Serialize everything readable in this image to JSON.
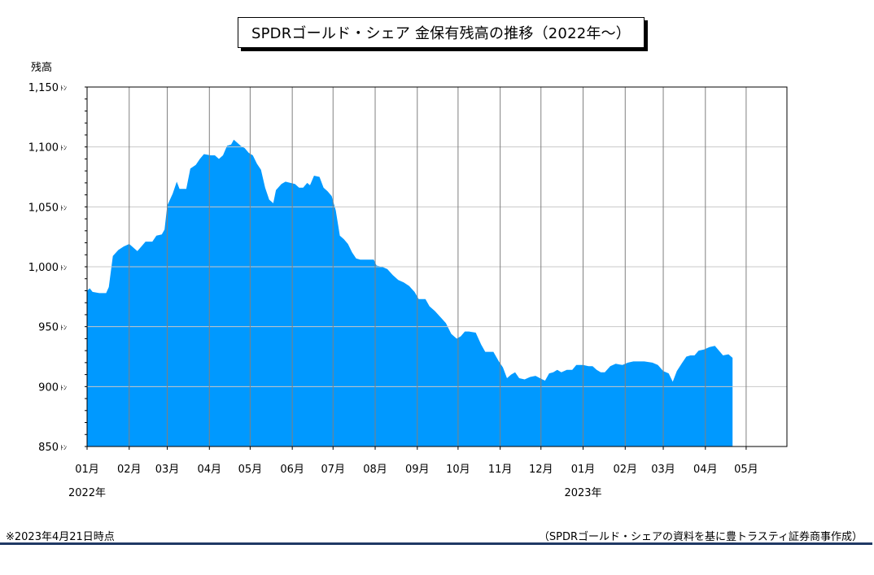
{
  "chart_data": {
    "type": "area",
    "title": "SPDRゴールド・シェア 金保有残高の推移（2022年～）",
    "ylabel": "残高",
    "y_unit": "ﾄﾝ",
    "ylim": [
      850,
      1150
    ],
    "yticks": [
      {
        "value": 850,
        "label": "850"
      },
      {
        "value": 900,
        "label": "900"
      },
      {
        "value": 950,
        "label": "950"
      },
      {
        "value": 1000,
        "label": "1,000"
      },
      {
        "value": 1050,
        "label": "1,050"
      },
      {
        "value": 1100,
        "label": "1,100"
      },
      {
        "value": 1150,
        "label": "1,150"
      }
    ],
    "xlim": [
      "2022-01-01",
      "2023-05-31"
    ],
    "xticks": [
      {
        "date": "2022-01-01",
        "label": "01月"
      },
      {
        "date": "2022-02-01",
        "label": "02月"
      },
      {
        "date": "2022-03-01",
        "label": "03月"
      },
      {
        "date": "2022-04-01",
        "label": "04月"
      },
      {
        "date": "2022-05-01",
        "label": "05月"
      },
      {
        "date": "2022-06-01",
        "label": "06月"
      },
      {
        "date": "2022-07-01",
        "label": "07月"
      },
      {
        "date": "2022-08-01",
        "label": "08月"
      },
      {
        "date": "2022-09-01",
        "label": "09月"
      },
      {
        "date": "2022-10-01",
        "label": "10月"
      },
      {
        "date": "2022-11-01",
        "label": "11月"
      },
      {
        "date": "2022-12-01",
        "label": "12月"
      },
      {
        "date": "2023-01-01",
        "label": "01月"
      },
      {
        "date": "2023-02-01",
        "label": "02月"
      },
      {
        "date": "2023-03-01",
        "label": "03月"
      },
      {
        "date": "2023-04-01",
        "label": "04月"
      },
      {
        "date": "2023-05-01",
        "label": "05月"
      }
    ],
    "year_labels": [
      {
        "date": "2022-01-01",
        "label": "2022年"
      },
      {
        "date": "2023-01-01",
        "label": "2023年"
      }
    ],
    "grid": true,
    "colors": {
      "fill": "#0099ff",
      "grid": "#808080"
    },
    "points": [
      [
        "2022-01-01",
        980
      ],
      [
        "2022-01-03",
        982
      ],
      [
        "2022-01-05",
        979
      ],
      [
        "2022-01-10",
        978
      ],
      [
        "2022-01-15",
        978
      ],
      [
        "2022-01-17",
        983
      ],
      [
        "2022-01-20",
        1009
      ],
      [
        "2022-01-24",
        1014
      ],
      [
        "2022-01-28",
        1017
      ],
      [
        "2022-02-01",
        1019
      ],
      [
        "2022-02-04",
        1016
      ],
      [
        "2022-02-07",
        1013
      ],
      [
        "2022-02-10",
        1017
      ],
      [
        "2022-02-13",
        1021
      ],
      [
        "2022-02-18",
        1021
      ],
      [
        "2022-02-21",
        1026
      ],
      [
        "2022-02-25",
        1027
      ],
      [
        "2022-02-27",
        1031
      ],
      [
        "2022-03-01",
        1051
      ],
      [
        "2022-03-05",
        1061
      ],
      [
        "2022-03-08",
        1071
      ],
      [
        "2022-03-10",
        1065
      ],
      [
        "2022-03-15",
        1065
      ],
      [
        "2022-03-18",
        1082
      ],
      [
        "2022-03-22",
        1085
      ],
      [
        "2022-03-25",
        1090
      ],
      [
        "2022-03-28",
        1094
      ],
      [
        "2022-04-02",
        1093
      ],
      [
        "2022-04-05",
        1093
      ],
      [
        "2022-04-08",
        1090
      ],
      [
        "2022-04-11",
        1093
      ],
      [
        "2022-04-14",
        1101
      ],
      [
        "2022-04-17",
        1102
      ],
      [
        "2022-04-19",
        1106
      ],
      [
        "2022-04-21",
        1104
      ],
      [
        "2022-04-24",
        1101
      ],
      [
        "2022-04-27",
        1099
      ],
      [
        "2022-04-30",
        1095
      ],
      [
        "2022-05-03",
        1093
      ],
      [
        "2022-05-06",
        1086
      ],
      [
        "2022-05-09",
        1081
      ],
      [
        "2022-05-12",
        1066
      ],
      [
        "2022-05-15",
        1056
      ],
      [
        "2022-05-18",
        1053
      ],
      [
        "2022-05-20",
        1064
      ],
      [
        "2022-05-24",
        1069
      ],
      [
        "2022-05-27",
        1071
      ],
      [
        "2022-06-03",
        1069
      ],
      [
        "2022-06-06",
        1066
      ],
      [
        "2022-06-09",
        1066
      ],
      [
        "2022-06-12",
        1070
      ],
      [
        "2022-06-14",
        1068
      ],
      [
        "2022-06-17",
        1076
      ],
      [
        "2022-06-21",
        1075
      ],
      [
        "2022-06-24",
        1066
      ],
      [
        "2022-06-27",
        1063
      ],
      [
        "2022-06-30",
        1059
      ],
      [
        "2022-07-03",
        1047
      ],
      [
        "2022-07-06",
        1026
      ],
      [
        "2022-07-09",
        1023
      ],
      [
        "2022-07-12",
        1019
      ],
      [
        "2022-07-15",
        1012
      ],
      [
        "2022-07-18",
        1007
      ],
      [
        "2022-07-21",
        1006
      ],
      [
        "2022-07-31",
        1006
      ],
      [
        "2022-08-02",
        1001
      ],
      [
        "2022-08-06",
        1000
      ],
      [
        "2022-08-10",
        998
      ],
      [
        "2022-08-14",
        993
      ],
      [
        "2022-08-18",
        989
      ],
      [
        "2022-08-22",
        987
      ],
      [
        "2022-08-26",
        984
      ],
      [
        "2022-08-30",
        979
      ],
      [
        "2022-09-02",
        973
      ],
      [
        "2022-09-07",
        973
      ],
      [
        "2022-09-10",
        967
      ],
      [
        "2022-09-14",
        963
      ],
      [
        "2022-09-18",
        958
      ],
      [
        "2022-09-22",
        953
      ],
      [
        "2022-09-26",
        944
      ],
      [
        "2022-09-30",
        940
      ],
      [
        "2022-10-03",
        942
      ],
      [
        "2022-10-06",
        946
      ],
      [
        "2022-10-09",
        946
      ],
      [
        "2022-10-14",
        945
      ],
      [
        "2022-10-18",
        935
      ],
      [
        "2022-10-21",
        929
      ],
      [
        "2022-10-27",
        929
      ],
      [
        "2022-10-31",
        921
      ],
      [
        "2022-11-03",
        916
      ],
      [
        "2022-11-06",
        907
      ],
      [
        "2022-11-09",
        910
      ],
      [
        "2022-11-12",
        912
      ],
      [
        "2022-11-15",
        907
      ],
      [
        "2022-11-19",
        906
      ],
      [
        "2022-11-23",
        908
      ],
      [
        "2022-11-27",
        909
      ],
      [
        "2022-12-02",
        906
      ],
      [
        "2022-12-04",
        905
      ],
      [
        "2022-12-07",
        911
      ],
      [
        "2022-12-10",
        912
      ],
      [
        "2022-12-13",
        914
      ],
      [
        "2022-12-16",
        912
      ],
      [
        "2022-12-20",
        914
      ],
      [
        "2022-12-24",
        914
      ],
      [
        "2022-12-27",
        918
      ],
      [
        "2023-01-01",
        918
      ],
      [
        "2023-01-05",
        917
      ],
      [
        "2023-01-08",
        917
      ],
      [
        "2023-01-11",
        914
      ],
      [
        "2023-01-14",
        912
      ],
      [
        "2023-01-17",
        912
      ],
      [
        "2023-01-21",
        917
      ],
      [
        "2023-01-25",
        919
      ],
      [
        "2023-01-30",
        918
      ],
      [
        "2023-02-03",
        920
      ],
      [
        "2023-02-07",
        921
      ],
      [
        "2023-02-15",
        921
      ],
      [
        "2023-02-21",
        920
      ],
      [
        "2023-02-25",
        918
      ],
      [
        "2023-03-01",
        913
      ],
      [
        "2023-03-05",
        911
      ],
      [
        "2023-03-08",
        904
      ],
      [
        "2023-03-11",
        913
      ],
      [
        "2023-03-15",
        920
      ],
      [
        "2023-03-18",
        925
      ],
      [
        "2023-03-21",
        926
      ],
      [
        "2023-03-24",
        926
      ],
      [
        "2023-03-27",
        930
      ],
      [
        "2023-03-31",
        931
      ],
      [
        "2023-04-04",
        933
      ],
      [
        "2023-04-08",
        934
      ],
      [
        "2023-04-11",
        930
      ],
      [
        "2023-04-14",
        926
      ],
      [
        "2023-04-18",
        927
      ],
      [
        "2023-04-21",
        924
      ]
    ]
  },
  "footnote": {
    "date_note": "※2023年4月21日時点",
    "source": "（SPDRゴールド・シェアの資料を基に豊トラスティ証券商事作成）"
  }
}
